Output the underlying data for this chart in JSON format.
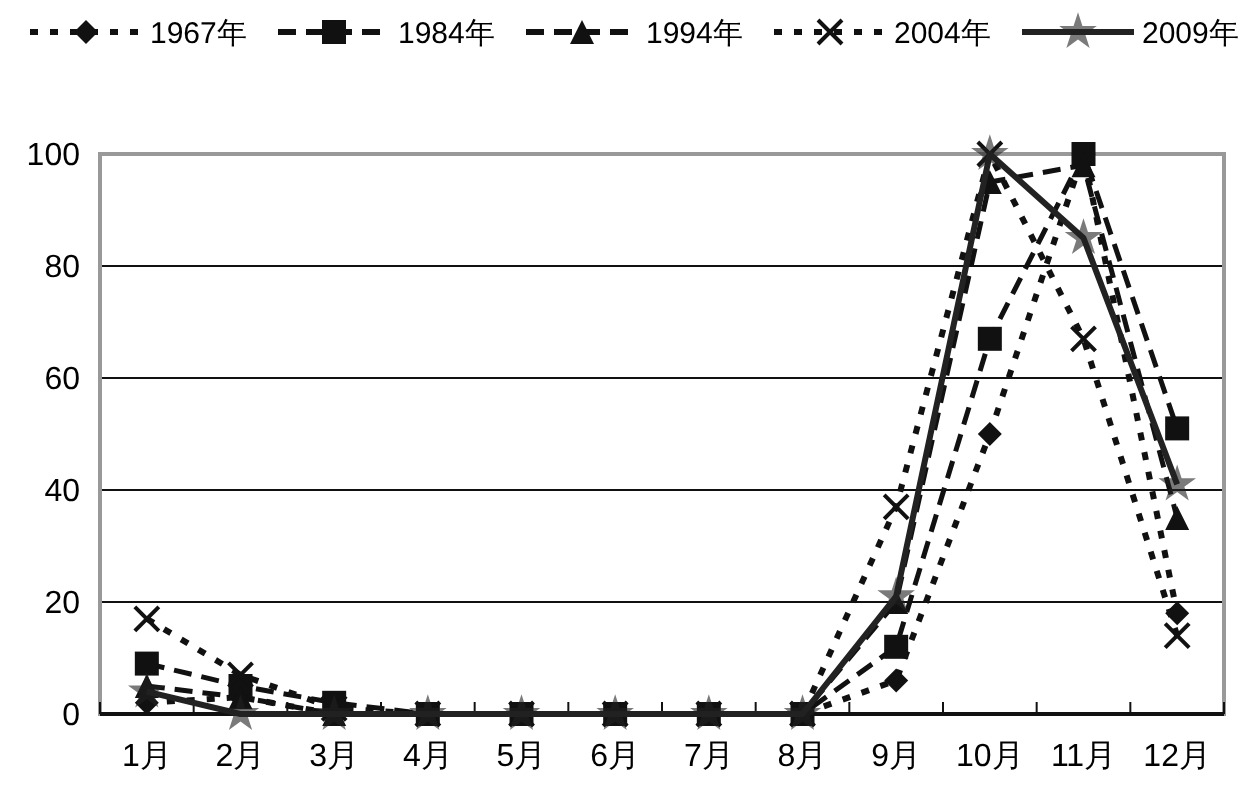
{
  "chart_data": {
    "type": "line",
    "categories": [
      "1月",
      "2月",
      "3月",
      "4月",
      "5月",
      "6月",
      "7月",
      "8月",
      "9月",
      "10月",
      "11月",
      "12月"
    ],
    "series": [
      {
        "name": "1967年",
        "color": "#111111",
        "marker": "diamond",
        "line_style": "dotted",
        "values": [
          2,
          3,
          0,
          0,
          0,
          0,
          0,
          0,
          6,
          50,
          100,
          18
        ]
      },
      {
        "name": "1984年",
        "color": "#111111",
        "marker": "square",
        "line_style": "dashed",
        "values": [
          9,
          5,
          2,
          0,
          0,
          0,
          0,
          0,
          12,
          67,
          100,
          51
        ]
      },
      {
        "name": "1994年",
        "color": "#111111",
        "marker": "triangle",
        "line_style": "dashed",
        "values": [
          5,
          3,
          0,
          0,
          0,
          0,
          0,
          0,
          20,
          95,
          98,
          35
        ]
      },
      {
        "name": "2004年",
        "color": "#111111",
        "marker": "cross",
        "line_style": "dotted",
        "values": [
          17,
          7,
          1,
          0,
          0,
          0,
          0,
          0,
          37,
          100,
          67,
          14
        ]
      },
      {
        "name": "2009年",
        "color": "#222222",
        "marker": "star",
        "line_style": "solid",
        "values": [
          4,
          0,
          0,
          0,
          0,
          0,
          0,
          0,
          21,
          100,
          85,
          41
        ]
      }
    ],
    "ylim": [
      0,
      100
    ],
    "yticks": [
      0,
      20,
      40,
      60,
      80,
      100
    ],
    "grid": "y",
    "legend": "top"
  }
}
